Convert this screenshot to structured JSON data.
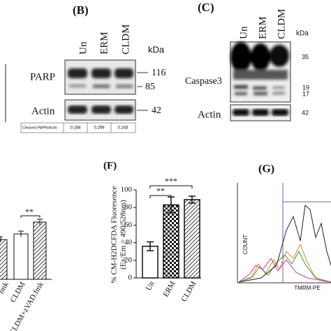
{
  "panel_b": {
    "label": "(B)",
    "lanes": [
      "Un",
      "ERM",
      "CLDM"
    ],
    "kda": "kDa",
    "blots": [
      {
        "name": "PARP",
        "markers": [
          "116",
          "85"
        ]
      },
      {
        "name": "Actin",
        "markers": [
          "42"
        ]
      }
    ],
    "table": {
      "header": "Cleaved PAPR/Actin",
      "cells": [
        "0.168",
        "0.269",
        "0.243"
      ]
    }
  },
  "panel_c": {
    "label": "(C)",
    "lanes": [
      "Un",
      "ERM",
      "CLDM"
    ],
    "kda": "kDa",
    "blots": [
      {
        "name": "Caspase3",
        "markers": [
          "35",
          "19",
          "17"
        ]
      },
      {
        "name": "Actin",
        "markers": [
          "42"
        ]
      }
    ]
  },
  "panel_e": {
    "labels": [
      "fmk",
      "CLDM",
      "CLDM+zVAD.fmk"
    ],
    "significance": "**"
  },
  "chart_data": {
    "type": "bar",
    "label": "(F)",
    "y_label": [
      "% CM-H2DCFDA Fluoresence",
      "(Ex/Em = 490/528nm)"
    ],
    "categories": [
      "Un",
      "ERM",
      "CLDM"
    ],
    "values": [
      36,
      83,
      89
    ],
    "errors": [
      5,
      9,
      4
    ],
    "ylim": [
      0,
      100
    ],
    "yticks": [
      0,
      20,
      40,
      60,
      80,
      100
    ],
    "annotations": [
      {
        "text": "**",
        "between": [
          "Un",
          "ERM"
        ]
      },
      {
        "text": "***",
        "between": [
          "Un",
          "CLDM"
        ]
      }
    ]
  },
  "panel_g": {
    "label": "(G)",
    "y_label": "COUNT",
    "x_label": "TMRM-PE"
  }
}
